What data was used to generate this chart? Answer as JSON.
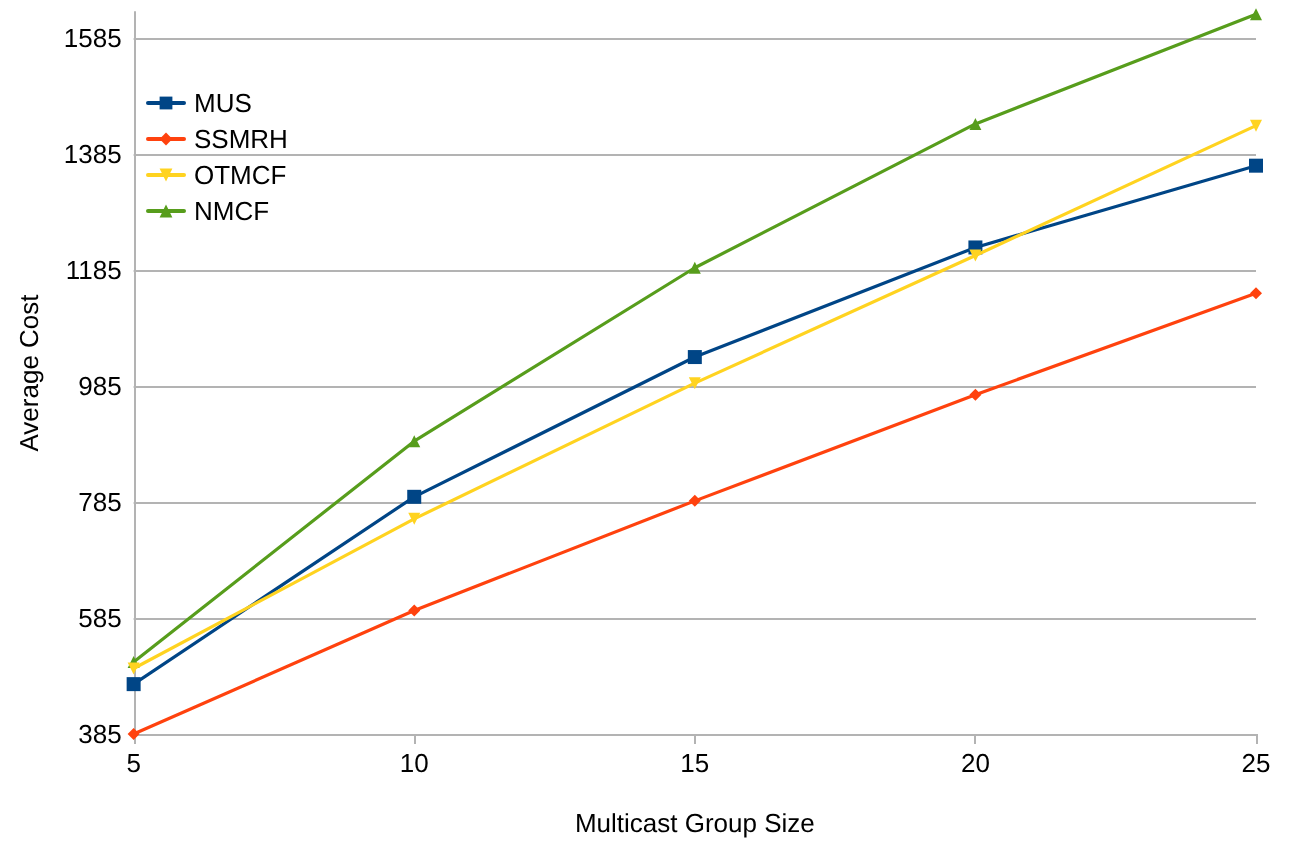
{
  "chart_data": {
    "type": "line",
    "xlabel": "Multicast Group Size",
    "ylabel": "Average Cost",
    "x": [
      5,
      10,
      15,
      20,
      25
    ],
    "xlim": [
      5,
      25
    ],
    "xticks": [
      5,
      10,
      15,
      20,
      25
    ],
    "ylim": [
      385,
      1630
    ],
    "yticks": [
      385,
      585,
      785,
      985,
      1185,
      1385,
      1585
    ],
    "grid": "y",
    "legend": "top left",
    "line_style": "solid",
    "series": [
      {
        "name": "MUS",
        "color": "#004586",
        "marker": "square",
        "values": [
          471,
          794,
          1035,
          1224,
          1365
        ]
      },
      {
        "name": "SSMRH",
        "color": "#ff420e",
        "marker": "diamond",
        "values": [
          385,
          598,
          787,
          970,
          1145
        ]
      },
      {
        "name": "OTMCF",
        "color": "#ffd320",
        "marker": "triangle-down",
        "values": [
          498,
          756,
          990,
          1210,
          1434
        ]
      },
      {
        "name": "NMCF",
        "color": "#579d1c",
        "marker": "triangle",
        "values": [
          509,
          890,
          1189,
          1437,
          1626
        ]
      }
    ]
  }
}
